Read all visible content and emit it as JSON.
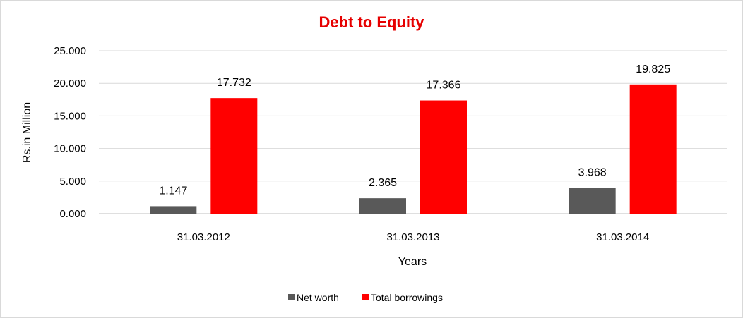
{
  "chart_data": {
    "type": "bar",
    "title": "Debt to Equity",
    "xlabel": "Years",
    "ylabel": "Rs.in Million",
    "categories": [
      "31.03.2012",
      "31.03.2013",
      "31.03.2014"
    ],
    "series": [
      {
        "name": "Net worth",
        "values": [
          1.147,
          2.365,
          3.968
        ],
        "labels": [
          "1.147",
          "2.365",
          "3.968"
        ],
        "color": "#595959"
      },
      {
        "name": "Total borrowings",
        "values": [
          17.732,
          17.366,
          19.825
        ],
        "labels": [
          "17.732",
          "17.366",
          "19.825"
        ],
        "color": "#ff0000"
      }
    ],
    "ylim": [
      0,
      25
    ],
    "yticks": [
      "0.000",
      "5.000",
      "10.000",
      "15.000",
      "20.000",
      "25.000"
    ],
    "grid": true,
    "legend_position": "bottom",
    "title_color": "#e60000"
  }
}
